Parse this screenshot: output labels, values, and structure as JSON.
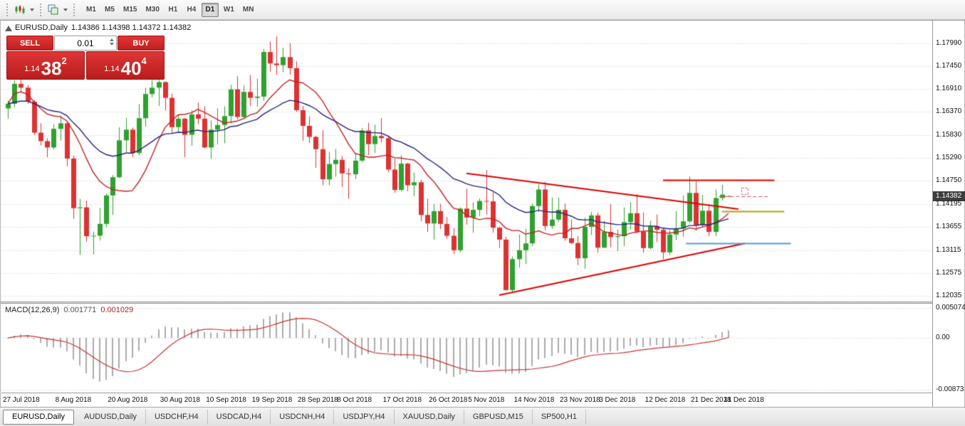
{
  "toolbar": {
    "timeframes": [
      {
        "label": "M1",
        "active": false
      },
      {
        "label": "M5",
        "active": false
      },
      {
        "label": "M15",
        "active": false
      },
      {
        "label": "M30",
        "active": false
      },
      {
        "label": "H1",
        "active": false
      },
      {
        "label": "H4",
        "active": false
      },
      {
        "label": "D1",
        "active": true
      },
      {
        "label": "W1",
        "active": false
      },
      {
        "label": "MN",
        "active": false
      }
    ]
  },
  "chart": {
    "info": {
      "symbol": "EURUSD,Daily",
      "ohlc": "1.14386 1.14398 1.14372 1.14382"
    },
    "one_click": {
      "sell_label": "SELL",
      "buy_label": "BUY",
      "volume": "0.01",
      "bid": {
        "prefix": "1.14",
        "big": "38",
        "sup": "2"
      },
      "ask": {
        "prefix": "1.14",
        "big": "40",
        "sup": "4"
      }
    },
    "current_price": "1.14382"
  },
  "macd_panel": {
    "label": "MACD(12,26,9)",
    "main_value": "0.001771",
    "signal_value": "0.001029",
    "axis_labels": [
      "0.005074",
      "0.00",
      "-0.00873"
    ]
  },
  "tabs": [
    {
      "label": "EURUSD,Daily",
      "active": true
    },
    {
      "label": "AUDUSD,Daily",
      "active": false
    },
    {
      "label": "USDCHF,H4",
      "active": false
    },
    {
      "label": "USDCAD,H4",
      "active": false
    },
    {
      "label": "USDCNH,H4",
      "active": false
    },
    {
      "label": "USDJPY,H4",
      "active": false
    },
    {
      "label": "XAUUSD,Daily",
      "active": false
    },
    {
      "label": "GBPUSD,M15",
      "active": false
    },
    {
      "label": "SP500,H1",
      "active": false
    }
  ],
  "chart_data": {
    "type": "candlestick",
    "symbol": "EURUSD",
    "timeframe": "Daily",
    "title": "EURUSD,Daily",
    "price_scale": {
      "min": 1.119,
      "max": 1.1852
    },
    "y_axis_labels": [
      "1.17990",
      "1.17450",
      "1.16910",
      "1.16370",
      "1.15830",
      "1.15290",
      "1.14750",
      "1.14195",
      "1.13655",
      "1.13115",
      "1.12575",
      "1.12035"
    ],
    "x_labels": [
      {
        "text": "27 Jul 2018",
        "bar": 0
      },
      {
        "text": "8 Aug 2018",
        "bar": 8
      },
      {
        "text": "20 Aug 2018",
        "bar": 16
      },
      {
        "text": "30 Aug 2018",
        "bar": 24
      },
      {
        "text": "10 Sep 2018",
        "bar": 31
      },
      {
        "text": "19 Sep 2018",
        "bar": 38
      },
      {
        "text": "28 Sep 2018",
        "bar": 45
      },
      {
        "text": "8 Oct 2018",
        "bar": 51
      },
      {
        "text": "17 Oct 2018",
        "bar": 58
      },
      {
        "text": "26 Oct 2018",
        "bar": 65
      },
      {
        "text": "5 Nov 2018",
        "bar": 71
      },
      {
        "text": "14 Nov 2018",
        "bar": 78
      },
      {
        "text": "23 Nov 2018",
        "bar": 85
      },
      {
        "text": "3 Dec 2018",
        "bar": 91
      },
      {
        "text": "12 Dec 2018",
        "bar": 98
      },
      {
        "text": "21 Dec 2018",
        "bar": 105
      },
      {
        "text": "31 Dec 2018",
        "bar": 110
      }
    ],
    "candles": [
      [
        1.1645,
        1.1663,
        1.1621,
        1.1656
      ],
      [
        1.1656,
        1.1712,
        1.1648,
        1.1703
      ],
      [
        1.1703,
        1.1746,
        1.1684,
        1.1694
      ],
      [
        1.1694,
        1.17,
        1.1656,
        1.1661
      ],
      [
        1.1661,
        1.1665,
        1.1582,
        1.1588
      ],
      [
        1.1588,
        1.161,
        1.1558,
        1.1568
      ],
      [
        1.1568,
        1.1575,
        1.153,
        1.1553
      ],
      [
        1.1553,
        1.1608,
        1.1548,
        1.1597
      ],
      [
        1.1597,
        1.1628,
        1.1569,
        1.161
      ],
      [
        1.161,
        1.1615,
        1.1509,
        1.1527
      ],
      [
        1.1527,
        1.1534,
        1.1385,
        1.141
      ],
      [
        1.141,
        1.1432,
        1.13,
        1.1412
      ],
      [
        1.1412,
        1.1428,
        1.1331,
        1.1344
      ],
      [
        1.1344,
        1.1355,
        1.1301,
        1.1345
      ],
      [
        1.1345,
        1.1411,
        1.1334,
        1.1373
      ],
      [
        1.1373,
        1.1445,
        1.1365,
        1.144
      ],
      [
        1.144,
        1.1488,
        1.1394,
        1.1483
      ],
      [
        1.1483,
        1.1601,
        1.1481,
        1.157
      ],
      [
        1.157,
        1.1623,
        1.1542,
        1.1595
      ],
      [
        1.1595,
        1.16,
        1.153,
        1.154
      ],
      [
        1.154,
        1.1655,
        1.1535,
        1.1622
      ],
      [
        1.1622,
        1.1694,
        1.1602,
        1.1679
      ],
      [
        1.1679,
        1.1733,
        1.1671,
        1.1694
      ],
      [
        1.1694,
        1.1717,
        1.1651,
        1.1707
      ],
      [
        1.1707,
        1.1709,
        1.164,
        1.167
      ],
      [
        1.167,
        1.168,
        1.1585,
        1.1601
      ],
      [
        1.1601,
        1.163,
        1.1588,
        1.1621
      ],
      [
        1.1621,
        1.1623,
        1.153,
        1.1583
      ],
      [
        1.1583,
        1.1641,
        1.1557,
        1.1631
      ],
      [
        1.1631,
        1.1659,
        1.1608,
        1.1621
      ],
      [
        1.1621,
        1.165,
        1.1551,
        1.1553
      ],
      [
        1.1553,
        1.1617,
        1.1526,
        1.1595
      ],
      [
        1.1595,
        1.1645,
        1.156,
        1.1606
      ],
      [
        1.1606,
        1.165,
        1.1563,
        1.1627
      ],
      [
        1.1627,
        1.1701,
        1.161,
        1.169
      ],
      [
        1.169,
        1.1721,
        1.1619,
        1.1625
      ],
      [
        1.1625,
        1.1699,
        1.162,
        1.1684
      ],
      [
        1.1684,
        1.1724,
        1.1651,
        1.167
      ],
      [
        1.167,
        1.1715,
        1.1649,
        1.1673
      ],
      [
        1.1673,
        1.1785,
        1.1663,
        1.1778
      ],
      [
        1.1778,
        1.1803,
        1.1732,
        1.1751
      ],
      [
        1.1751,
        1.1815,
        1.1724,
        1.1747
      ],
      [
        1.1747,
        1.1788,
        1.1731,
        1.1766
      ],
      [
        1.1766,
        1.1799,
        1.1725,
        1.174
      ],
      [
        1.174,
        1.1756,
        1.1637,
        1.1641
      ],
      [
        1.1641,
        1.1651,
        1.1569,
        1.1604
      ],
      [
        1.1604,
        1.1626,
        1.1564,
        1.1578
      ],
      [
        1.1578,
        1.1581,
        1.1505,
        1.1549
      ],
      [
        1.1549,
        1.1594,
        1.1464,
        1.1478
      ],
      [
        1.1478,
        1.1543,
        1.1464,
        1.1514
      ],
      [
        1.1514,
        1.155,
        1.1484,
        1.1524
      ],
      [
        1.1524,
        1.1533,
        1.146,
        1.1492
      ],
      [
        1.1492,
        1.1504,
        1.1432,
        1.149
      ],
      [
        1.149,
        1.154,
        1.1478,
        1.1522
      ],
      [
        1.1522,
        1.1599,
        1.1518,
        1.1593
      ],
      [
        1.1593,
        1.1611,
        1.1535,
        1.1561
      ],
      [
        1.1561,
        1.1607,
        1.154,
        1.158
      ],
      [
        1.158,
        1.1622,
        1.1565,
        1.1575
      ],
      [
        1.1575,
        1.1581,
        1.1495,
        1.1501
      ],
      [
        1.1501,
        1.1527,
        1.1446,
        1.1453
      ],
      [
        1.1453,
        1.1535,
        1.145,
        1.1515
      ],
      [
        1.1515,
        1.1517,
        1.145,
        1.1464
      ],
      [
        1.1464,
        1.1494,
        1.1438,
        1.1471
      ],
      [
        1.1471,
        1.1477,
        1.1379,
        1.1394
      ],
      [
        1.1394,
        1.1432,
        1.1354,
        1.1374
      ],
      [
        1.1374,
        1.142,
        1.1336,
        1.1403
      ],
      [
        1.1403,
        1.142,
        1.1361,
        1.1373
      ],
      [
        1.1373,
        1.1389,
        1.1338,
        1.1345
      ],
      [
        1.1345,
        1.1363,
        1.1302,
        1.1311
      ],
      [
        1.1311,
        1.1412,
        1.1306,
        1.1409
      ],
      [
        1.1409,
        1.1456,
        1.1371,
        1.1388
      ],
      [
        1.1388,
        1.1424,
        1.1352,
        1.1406
      ],
      [
        1.1406,
        1.1433,
        1.1391,
        1.1427
      ],
      [
        1.1427,
        1.15,
        1.1395,
        1.1426
      ],
      [
        1.1426,
        1.1447,
        1.1352,
        1.1364
      ],
      [
        1.1364,
        1.1366,
        1.1316,
        1.1336
      ],
      [
        1.1336,
        1.1343,
        1.1216,
        1.1217
      ],
      [
        1.1217,
        1.1296,
        1.1212,
        1.129
      ],
      [
        1.129,
        1.1348,
        1.127,
        1.1311
      ],
      [
        1.1311,
        1.1362,
        1.1278,
        1.1327
      ],
      [
        1.1327,
        1.1421,
        1.132,
        1.1415
      ],
      [
        1.1415,
        1.1467,
        1.1401,
        1.1454
      ],
      [
        1.1454,
        1.1472,
        1.1358,
        1.1368
      ],
      [
        1.1368,
        1.1435,
        1.1361,
        1.1383
      ],
      [
        1.1383,
        1.1435,
        1.1378,
        1.1406
      ],
      [
        1.1406,
        1.1421,
        1.1333,
        1.1339
      ],
      [
        1.1339,
        1.1383,
        1.1325,
        1.1328
      ],
      [
        1.1328,
        1.1344,
        1.1276,
        1.1292
      ],
      [
        1.1292,
        1.1388,
        1.1267,
        1.1366
      ],
      [
        1.1366,
        1.1401,
        1.1347,
        1.1393
      ],
      [
        1.1393,
        1.14,
        1.1305,
        1.1317
      ],
      [
        1.1317,
        1.138,
        1.1316,
        1.1354
      ],
      [
        1.1354,
        1.142,
        1.1318,
        1.1342
      ],
      [
        1.1342,
        1.136,
        1.1309,
        1.1344
      ],
      [
        1.1344,
        1.1412,
        1.1321,
        1.1377
      ],
      [
        1.1377,
        1.1424,
        1.136,
        1.1398
      ],
      [
        1.1398,
        1.1443,
        1.1351,
        1.1355
      ],
      [
        1.1355,
        1.14,
        1.1305,
        1.1316
      ],
      [
        1.1316,
        1.138,
        1.1313,
        1.1368
      ],
      [
        1.1368,
        1.1395,
        1.133,
        1.1359
      ],
      [
        1.1359,
        1.1365,
        1.129,
        1.1306
      ],
      [
        1.1306,
        1.1358,
        1.1299,
        1.1348
      ],
      [
        1.1348,
        1.1403,
        1.1335,
        1.1362
      ],
      [
        1.1362,
        1.144,
        1.1343,
        1.1379
      ],
      [
        1.1379,
        1.1485,
        1.1375,
        1.1446
      ],
      [
        1.1446,
        1.1473,
        1.1357,
        1.137
      ],
      [
        1.137,
        1.1441,
        1.1365,
        1.1404
      ],
      [
        1.1404,
        1.142,
        1.1344,
        1.1354
      ],
      [
        1.1354,
        1.1454,
        1.1344,
        1.1434
      ],
      [
        1.1434,
        1.1465,
        1.1428,
        1.1442
      ],
      [
        1.14386,
        1.14398,
        1.14372,
        1.14382
      ]
    ],
    "moving_averages": [
      {
        "name": "ma-fast",
        "method": "sma",
        "period": 10,
        "color": "#c62222"
      },
      {
        "name": "ma-slow",
        "method": "ema",
        "period": 25,
        "color": "#23237d"
      }
    ],
    "colors": {
      "bull": "#2fa12f",
      "bear": "#dd3232",
      "grid": "#cccccc",
      "bg": "#ffffff"
    },
    "objects": {
      "trendlines": [
        {
          "b1": 70,
          "p1": 1.1492,
          "b2": 111.5,
          "p2": 1.1408,
          "color": "#e00000",
          "width": 2
        },
        {
          "b1": 75,
          "p1": 1.1205,
          "b2": 112.5,
          "p2": 1.1327,
          "color": "#e00000",
          "width": 2
        }
      ],
      "hlines": [
        {
          "price": 1.1476,
          "b1": 100,
          "b2": 117,
          "color": "#e00000",
          "width": 2
        },
        {
          "price": 1.1403,
          "b1": 109,
          "b2": 118.5,
          "color": "#b3a000",
          "width": 2
        },
        {
          "price": 1.1328,
          "b1": 103.5,
          "b2": 119.5,
          "color": "#4f9bd5",
          "width": 2
        }
      ],
      "bid_line": {
        "price": 1.14382,
        "b1": 108.5,
        "b2": 116,
        "color": "#d05858",
        "marker_bar": 112.5
      }
    },
    "macd": {
      "fast": 12,
      "slow": 26,
      "signal": 9,
      "scale": {
        "min": -0.00925,
        "max": 0.0058
      },
      "histogram_color": "#ababab",
      "signal_color": "#c83232"
    }
  }
}
